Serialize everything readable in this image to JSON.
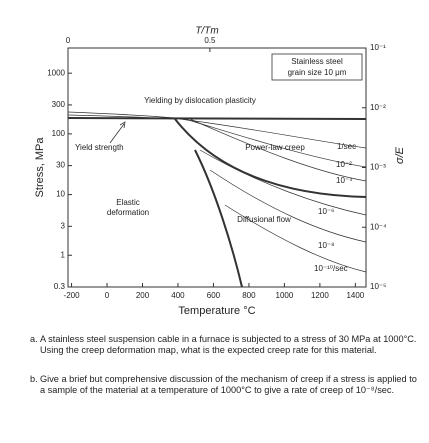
{
  "chart_data": {
    "type": "line",
    "xlabel": "Temperature °C",
    "ylabel": "Stress, MPa",
    "y2label": "σ/E",
    "x2label": "T/Tm",
    "xlim": [
      -220,
      1460
    ],
    "xticks": [
      -200,
      0,
      200,
      400,
      600,
      800,
      1000,
      1200,
      1400
    ],
    "x2lim": [
      0,
      1.05
    ],
    "x2ticks": [
      0,
      0.5
    ],
    "ylim": [
      0.3,
      2600
    ],
    "ylog": true,
    "yticks": [
      1000,
      300,
      100,
      30,
      10,
      3,
      1,
      0.3
    ],
    "y2lim": [
      1e-05,
      0.1
    ],
    "y2log": true,
    "y2ticks": [
      {
        "value": 0.1,
        "label": "10⁻¹"
      },
      {
        "value": 0.01,
        "label": "10⁻²"
      },
      {
        "value": 0.001,
        "label": "10⁻³"
      },
      {
        "value": 0.0001,
        "label": "10⁻⁴"
      },
      {
        "value": 1e-05,
        "label": "10⁻⁵"
      }
    ],
    "annotations": [
      "Stainless steel",
      "grain size 10 μm",
      "Yielding by dislocation plasticity",
      "Yield strength",
      "Power-law creep",
      "1/sec",
      "10⁻²",
      "10⁻⁴",
      "Elastic",
      "deformation",
      "Diffusional flow",
      "10⁻⁶",
      "10⁻⁸",
      "10⁻¹⁰/sec"
    ]
  },
  "questions": [
    {
      "label": "a.",
      "text": "A stainless steel suspension cable in a furnace is subjected to a stress of 30 MPa at 1000°C. Using the creep deformation map, what is the expected creep rate for this material."
    },
    {
      "label": "b.",
      "text": "Give a brief but comprehensive discussion of the mechanism of creep if a stress is applied to a sample of the material at a temperature of 1000°C to give a rate of creep of 10⁻⁸/sec."
    }
  ]
}
